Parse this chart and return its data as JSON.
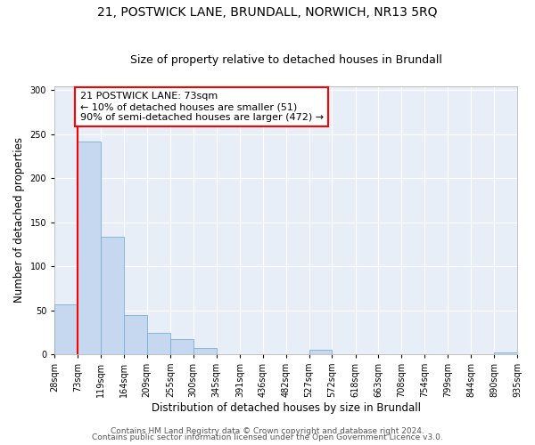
{
  "title": "21, POSTWICK LANE, BRUNDALL, NORWICH, NR13 5RQ",
  "subtitle": "Size of property relative to detached houses in Brundall",
  "xlabel": "Distribution of detached houses by size in Brundall",
  "ylabel": "Number of detached properties",
  "bin_edges": [
    28,
    73,
    119,
    164,
    209,
    255,
    300,
    345,
    391,
    436,
    482,
    527,
    572,
    618,
    663,
    708,
    754,
    799,
    844,
    890,
    935
  ],
  "bin_labels": [
    "28sqm",
    "73sqm",
    "119sqm",
    "164sqm",
    "209sqm",
    "255sqm",
    "300sqm",
    "345sqm",
    "391sqm",
    "436sqm",
    "482sqm",
    "527sqm",
    "572sqm",
    "618sqm",
    "663sqm",
    "708sqm",
    "754sqm",
    "799sqm",
    "844sqm",
    "890sqm",
    "935sqm"
  ],
  "bar_heights": [
    57,
    242,
    133,
    44,
    24,
    17,
    7,
    0,
    0,
    0,
    0,
    5,
    0,
    0,
    0,
    0,
    0,
    0,
    0,
    2
  ],
  "bar_color": "#c5d8f0",
  "bar_edge_color": "#7aafd4",
  "red_line_x": 73,
  "annotation_box_text": "21 POSTWICK LANE: 73sqm\n← 10% of detached houses are smaller (51)\n90% of semi-detached houses are larger (472) →",
  "ylim": [
    0,
    305
  ],
  "yticks": [
    0,
    50,
    100,
    150,
    200,
    250,
    300
  ],
  "footer_line1": "Contains HM Land Registry data © Crown copyright and database right 2024.",
  "footer_line2": "Contains public sector information licensed under the Open Government Licence v3.0.",
  "bg_color": "#ffffff",
  "plot_bg_color": "#e8eef8",
  "grid_color": "#ffffff",
  "title_fontsize": 10,
  "subtitle_fontsize": 9,
  "axis_label_fontsize": 8.5,
  "tick_fontsize": 7,
  "footer_fontsize": 6.5,
  "annotation_fontsize": 8
}
